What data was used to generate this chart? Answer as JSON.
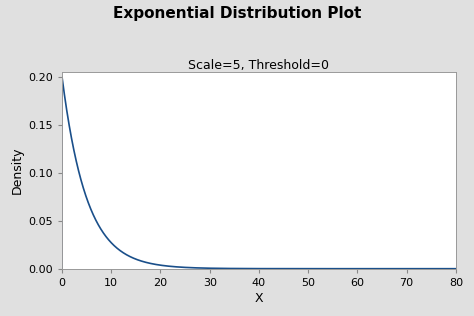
{
  "title": "Exponential Distribution Plot",
  "subtitle": "Scale=5, Threshold=0",
  "xlabel": "X",
  "ylabel": "Density",
  "scale": 5,
  "threshold": 0,
  "x_min": 0,
  "x_max": 80,
  "y_min": 0,
  "y_max": 0.205,
  "x_ticks": [
    0,
    10,
    20,
    30,
    40,
    50,
    60,
    70,
    80
  ],
  "y_ticks": [
    0.0,
    0.05,
    0.1,
    0.15,
    0.2
  ],
  "line_color": "#1a4f8a",
  "background_color": "#e0e0e0",
  "plot_bg_color": "#ffffff",
  "title_fontsize": 11,
  "subtitle_fontsize": 9,
  "axis_label_fontsize": 9,
  "tick_fontsize": 8
}
